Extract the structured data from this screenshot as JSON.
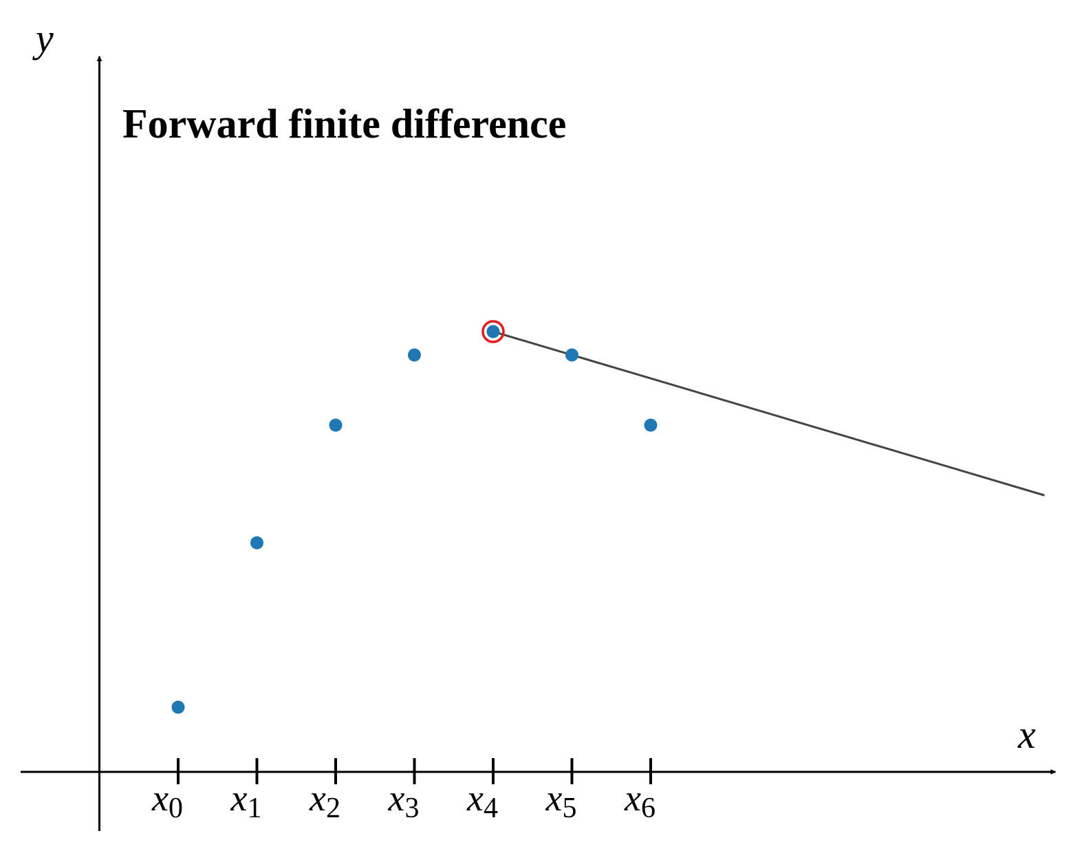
{
  "chart_data": {
    "type": "scatter",
    "title": "Forward finite difference",
    "x_label": "x",
    "y_label": "y",
    "x": [
      1,
      2,
      3,
      4,
      5,
      6,
      7
    ],
    "values": [
      0.94,
      3.33,
      5.04,
      6.06,
      6.4,
      6.06,
      5.04
    ],
    "color": "#1f77b4",
    "xlim": [
      -1,
      12.14
    ],
    "ylim": [
      -0.86,
      10.4
    ],
    "xticks": [
      {
        "value": 1,
        "label": "x0"
      },
      {
        "value": 2,
        "label": "x1"
      },
      {
        "value": 3,
        "label": "x2"
      },
      {
        "value": 4,
        "label": "x3"
      },
      {
        "value": 5,
        "label": "x4"
      },
      {
        "value": 6,
        "label": "x5"
      },
      {
        "value": 7,
        "label": "x6"
      }
    ],
    "highlight_point": 4,
    "highlight_color": "#e41a1c",
    "secant": {
      "x": [
        5,
        12
      ],
      "y": [
        6.4,
        4.02
      ],
      "color": "#444444"
    }
  }
}
